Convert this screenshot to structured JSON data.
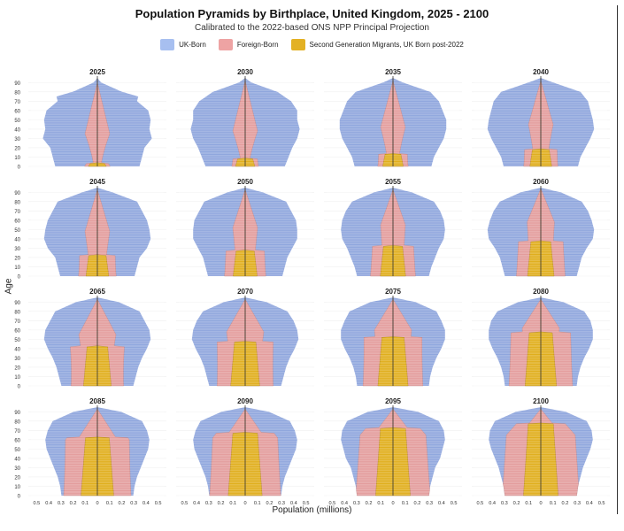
{
  "chart_data": {
    "type": "population-pyramid",
    "title": "Population Pyramids by Birthplace, United Kingdom, 2025 - 2100",
    "subtitle": "Calibrated to the 2022-based ONS NPP Principal Projection",
    "xlabel": "Population (millions)",
    "ylabel": "Age",
    "xlim": [
      -0.5,
      0.5
    ],
    "ylim": [
      0,
      95
    ],
    "x_ticks": [
      -0.5,
      -0.4,
      -0.3,
      -0.2,
      -0.1,
      0,
      0.1,
      0.2,
      0.3,
      0.4,
      0.5
    ],
    "x_tick_labels": [
      "0.5",
      "0.4",
      "0.3",
      "0.2",
      "0.1",
      "0",
      "0.1",
      "0.2",
      "0.3",
      "0.4",
      "0.5"
    ],
    "y_ticks": [
      0,
      10,
      20,
      30,
      40,
      50,
      60,
      70,
      80,
      90
    ],
    "series": [
      {
        "name": "UK-Born",
        "color": "#a7bff0"
      },
      {
        "name": "Foreign-Born",
        "color": "#eea3a3"
      },
      {
        "name": "Second Generation Migrants, UK Born post-2022",
        "color": "#e3b124"
      }
    ],
    "panels": [
      {
        "year": "2025",
        "sg_top": 3,
        "fb_peak_age": 35,
        "fb_width": 0.1,
        "fb_top": 90,
        "fb_base": 0.03,
        "total": [
          [
            0,
            0.34
          ],
          [
            10,
            0.36
          ],
          [
            20,
            0.38
          ],
          [
            30,
            0.44
          ],
          [
            40,
            0.42
          ],
          [
            50,
            0.43
          ],
          [
            60,
            0.41
          ],
          [
            70,
            0.32
          ],
          [
            75,
            0.33
          ],
          [
            80,
            0.2
          ],
          [
            90,
            0.03
          ],
          [
            95,
            0.0
          ]
        ]
      },
      {
        "year": "2030",
        "sg_top": 8,
        "fb_peak_age": 38,
        "fb_width": 0.1,
        "fb_top": 92,
        "fb_base": 0.03,
        "total": [
          [
            0,
            0.32
          ],
          [
            10,
            0.35
          ],
          [
            20,
            0.38
          ],
          [
            30,
            0.42
          ],
          [
            40,
            0.44
          ],
          [
            50,
            0.42
          ],
          [
            60,
            0.42
          ],
          [
            70,
            0.37
          ],
          [
            80,
            0.26
          ],
          [
            90,
            0.05
          ],
          [
            95,
            0.0
          ]
        ]
      },
      {
        "year": "2035",
        "sg_top": 13,
        "fb_peak_age": 42,
        "fb_width": 0.1,
        "fb_top": 92,
        "fb_base": 0.04,
        "total": [
          [
            0,
            0.31
          ],
          [
            10,
            0.33
          ],
          [
            20,
            0.37
          ],
          [
            30,
            0.41
          ],
          [
            40,
            0.43
          ],
          [
            50,
            0.43
          ],
          [
            60,
            0.4
          ],
          [
            70,
            0.37
          ],
          [
            80,
            0.3
          ],
          [
            90,
            0.08
          ],
          [
            95,
            0.0
          ]
        ]
      },
      {
        "year": "2040",
        "sg_top": 18,
        "fb_peak_age": 45,
        "fb_width": 0.1,
        "fb_top": 92,
        "fb_base": 0.05,
        "total": [
          [
            0,
            0.3
          ],
          [
            10,
            0.32
          ],
          [
            20,
            0.36
          ],
          [
            30,
            0.4
          ],
          [
            40,
            0.43
          ],
          [
            50,
            0.42
          ],
          [
            60,
            0.4
          ],
          [
            70,
            0.38
          ],
          [
            80,
            0.32
          ],
          [
            90,
            0.1
          ],
          [
            95,
            0.0
          ]
        ]
      },
      {
        "year": "2045",
        "sg_top": 22,
        "fb_peak_age": 48,
        "fb_width": 0.1,
        "fb_top": 93,
        "fb_base": 0.06,
        "total": [
          [
            0,
            0.3
          ],
          [
            10,
            0.32
          ],
          [
            20,
            0.34
          ],
          [
            30,
            0.4
          ],
          [
            40,
            0.43
          ],
          [
            50,
            0.42
          ],
          [
            60,
            0.4
          ],
          [
            70,
            0.36
          ],
          [
            80,
            0.32
          ],
          [
            90,
            0.12
          ],
          [
            95,
            0.0
          ]
        ]
      },
      {
        "year": "2050",
        "sg_top": 27,
        "fb_peak_age": 52,
        "fb_width": 0.1,
        "fb_top": 93,
        "fb_base": 0.07,
        "total": [
          [
            0,
            0.3
          ],
          [
            10,
            0.32
          ],
          [
            20,
            0.34
          ],
          [
            30,
            0.38
          ],
          [
            40,
            0.42
          ],
          [
            50,
            0.42
          ],
          [
            60,
            0.41
          ],
          [
            70,
            0.37
          ],
          [
            80,
            0.33
          ],
          [
            90,
            0.14
          ],
          [
            95,
            0.0
          ]
        ]
      },
      {
        "year": "2055",
        "sg_top": 32,
        "fb_peak_age": 55,
        "fb_width": 0.1,
        "fb_top": 93,
        "fb_base": 0.08,
        "total": [
          [
            0,
            0.29
          ],
          [
            10,
            0.31
          ],
          [
            20,
            0.34
          ],
          [
            30,
            0.37
          ],
          [
            40,
            0.41
          ],
          [
            50,
            0.42
          ],
          [
            60,
            0.41
          ],
          [
            70,
            0.38
          ],
          [
            80,
            0.33
          ],
          [
            90,
            0.15
          ],
          [
            95,
            0.0
          ]
        ]
      },
      {
        "year": "2060",
        "sg_top": 37,
        "fb_peak_age": 58,
        "fb_width": 0.11,
        "fb_top": 94,
        "fb_base": 0.09,
        "total": [
          [
            0,
            0.29
          ],
          [
            10,
            0.31
          ],
          [
            20,
            0.33
          ],
          [
            30,
            0.37
          ],
          [
            40,
            0.42
          ],
          [
            50,
            0.43
          ],
          [
            60,
            0.41
          ],
          [
            70,
            0.38
          ],
          [
            80,
            0.33
          ],
          [
            90,
            0.16
          ],
          [
            95,
            0.0
          ]
        ]
      },
      {
        "year": "2065",
        "sg_top": 42,
        "fb_peak_age": 55,
        "fb_width": 0.15,
        "fb_top": 93,
        "fb_base": 0.1,
        "total": [
          [
            0,
            0.29
          ],
          [
            10,
            0.31
          ],
          [
            20,
            0.33
          ],
          [
            30,
            0.36
          ],
          [
            40,
            0.4
          ],
          [
            50,
            0.43
          ],
          [
            60,
            0.42
          ],
          [
            70,
            0.38
          ],
          [
            80,
            0.34
          ],
          [
            90,
            0.17
          ],
          [
            95,
            0.0
          ]
        ]
      },
      {
        "year": "2070",
        "sg_top": 47,
        "fb_peak_age": 58,
        "fb_width": 0.15,
        "fb_top": 93,
        "fb_base": 0.11,
        "total": [
          [
            0,
            0.29
          ],
          [
            10,
            0.31
          ],
          [
            20,
            0.33
          ],
          [
            30,
            0.36
          ],
          [
            40,
            0.4
          ],
          [
            50,
            0.43
          ],
          [
            60,
            0.42
          ],
          [
            70,
            0.39
          ],
          [
            80,
            0.34
          ],
          [
            90,
            0.17
          ],
          [
            95,
            0.0
          ]
        ]
      },
      {
        "year": "2075",
        "sg_top": 52,
        "fb_peak_age": 60,
        "fb_width": 0.15,
        "fb_top": 93,
        "fb_base": 0.12,
        "total": [
          [
            0,
            0.29
          ],
          [
            10,
            0.3
          ],
          [
            20,
            0.32
          ],
          [
            30,
            0.35
          ],
          [
            40,
            0.39
          ],
          [
            50,
            0.42
          ],
          [
            60,
            0.42
          ],
          [
            70,
            0.39
          ],
          [
            80,
            0.35
          ],
          [
            90,
            0.18
          ],
          [
            95,
            0.0
          ]
        ]
      },
      {
        "year": "2080",
        "sg_top": 57,
        "fb_peak_age": 62,
        "fb_width": 0.15,
        "fb_top": 93,
        "fb_base": 0.13,
        "total": [
          [
            0,
            0.29
          ],
          [
            10,
            0.3
          ],
          [
            20,
            0.32
          ],
          [
            30,
            0.35
          ],
          [
            40,
            0.39
          ],
          [
            50,
            0.42
          ],
          [
            60,
            0.42
          ],
          [
            70,
            0.4
          ],
          [
            80,
            0.35
          ],
          [
            90,
            0.18
          ],
          [
            95,
            0.0
          ]
        ]
      },
      {
        "year": "2085",
        "sg_top": 62,
        "fb_peak_age": 60,
        "fb_width": 0.16,
        "fb_top": 93,
        "fb_base": 0.14,
        "total": [
          [
            0,
            0.29
          ],
          [
            10,
            0.3
          ],
          [
            20,
            0.32
          ],
          [
            30,
            0.35
          ],
          [
            40,
            0.38
          ],
          [
            50,
            0.41
          ],
          [
            60,
            0.42
          ],
          [
            70,
            0.4
          ],
          [
            80,
            0.36
          ],
          [
            90,
            0.19
          ],
          [
            95,
            0.0
          ]
        ]
      },
      {
        "year": "2090",
        "sg_top": 67,
        "fb_peak_age": 62,
        "fb_width": 0.16,
        "fb_top": 93,
        "fb_base": 0.15,
        "total": [
          [
            0,
            0.29
          ],
          [
            10,
            0.3
          ],
          [
            20,
            0.32
          ],
          [
            30,
            0.35
          ],
          [
            40,
            0.38
          ],
          [
            50,
            0.41
          ],
          [
            60,
            0.42
          ],
          [
            70,
            0.4
          ],
          [
            80,
            0.36
          ],
          [
            90,
            0.19
          ],
          [
            95,
            0.0
          ]
        ]
      },
      {
        "year": "2095",
        "sg_top": 72,
        "fb_peak_age": 65,
        "fb_width": 0.16,
        "fb_top": 93,
        "fb_base": 0.16,
        "total": [
          [
            0,
            0.29
          ],
          [
            10,
            0.3
          ],
          [
            20,
            0.32
          ],
          [
            30,
            0.34
          ],
          [
            40,
            0.38
          ],
          [
            50,
            0.4
          ],
          [
            60,
            0.42
          ],
          [
            70,
            0.41
          ],
          [
            80,
            0.37
          ],
          [
            90,
            0.2
          ],
          [
            95,
            0.0
          ]
        ]
      },
      {
        "year": "2100",
        "sg_top": 77,
        "fb_peak_age": 65,
        "fb_width": 0.17,
        "fb_top": 93,
        "fb_base": 0.17,
        "total": [
          [
            0,
            0.29
          ],
          [
            10,
            0.3
          ],
          [
            20,
            0.32
          ],
          [
            30,
            0.34
          ],
          [
            40,
            0.37
          ],
          [
            50,
            0.4
          ],
          [
            60,
            0.42
          ],
          [
            70,
            0.41
          ],
          [
            80,
            0.37
          ],
          [
            90,
            0.2
          ],
          [
            95,
            0.0
          ]
        ]
      }
    ]
  }
}
